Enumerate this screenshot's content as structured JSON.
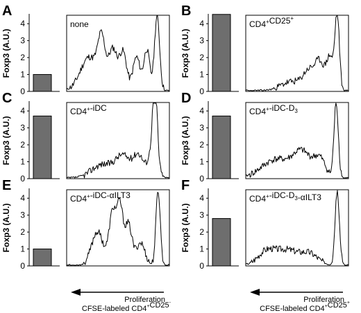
{
  "chart_data": {
    "type": "bar",
    "ylabel": "Foxp3 (A.U.)",
    "ylim": [
      0,
      4.5
    ],
    "yticks": [
      "0",
      "1",
      "2",
      "3",
      "4"
    ],
    "panels": [
      {
        "letter": "A",
        "label": "none",
        "foxp3": 1.0
      },
      {
        "letter": "B",
        "label": "CD4+CD25+",
        "foxp3": 4.55
      },
      {
        "letter": "C",
        "label": "CD4+-iDC",
        "foxp3": 3.7
      },
      {
        "letter": "D",
        "label": "CD4+-iDC-D3",
        "foxp3": 3.7
      },
      {
        "letter": "E",
        "label": "CD4+-iDC-αILT3",
        "foxp3": 1.0
      },
      {
        "letter": "F",
        "label": "CD4+-iDC-D3-αILT3",
        "foxp3": 2.8
      }
    ]
  },
  "footer": {
    "left": {
      "arrow_label": "Proliferation",
      "caption": "CFSE-labeled CD4+CD25-"
    },
    "right": {
      "arrow_label": "Proliferation",
      "caption": "CFSE-labeled CD4+CD25+"
    }
  }
}
